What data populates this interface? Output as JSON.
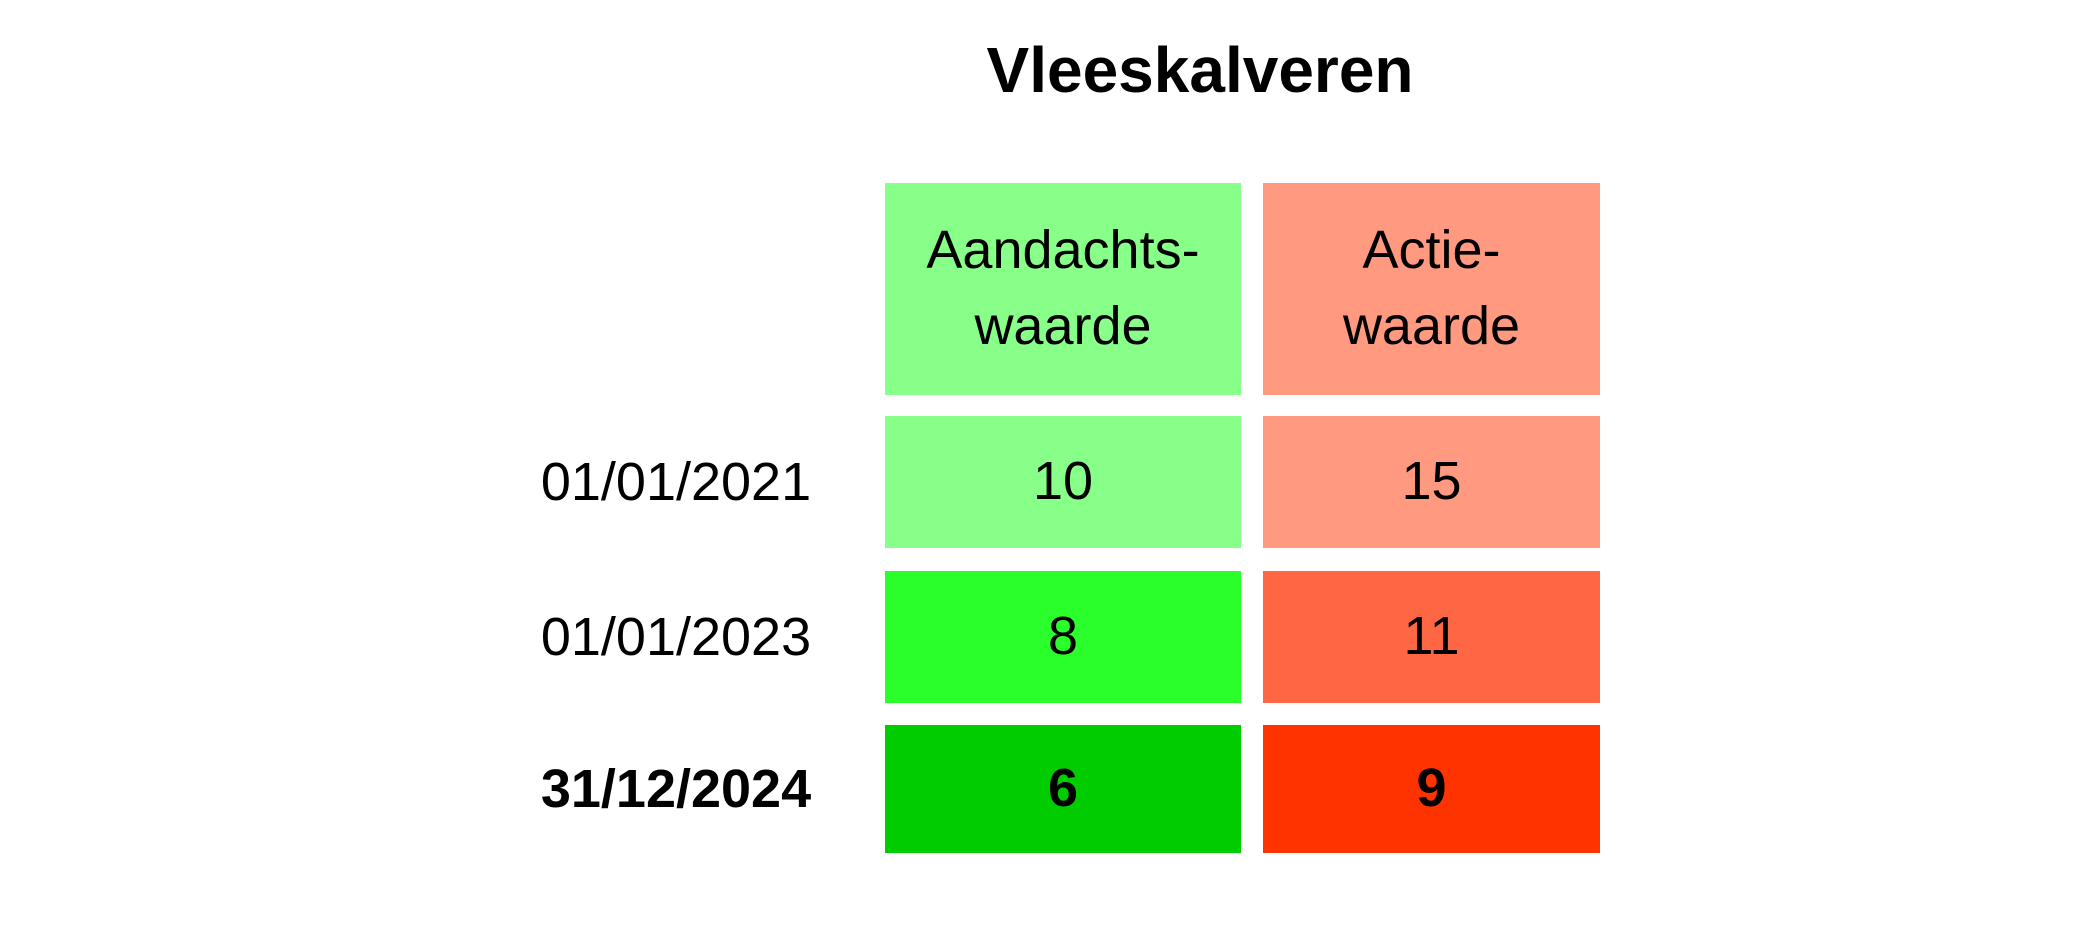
{
  "title": "Vleeskalveren",
  "table": {
    "header": [
      [
        "Aandachts-",
        "waarde"
      ],
      [
        "Actie-",
        "waarde"
      ]
    ],
    "rows": [
      [
        "01/01/2021",
        "10",
        "15"
      ],
      [
        "01/01/2023",
        "8",
        "11"
      ],
      [
        "31/12/2024",
        "6",
        "9"
      ]
    ]
  }
}
